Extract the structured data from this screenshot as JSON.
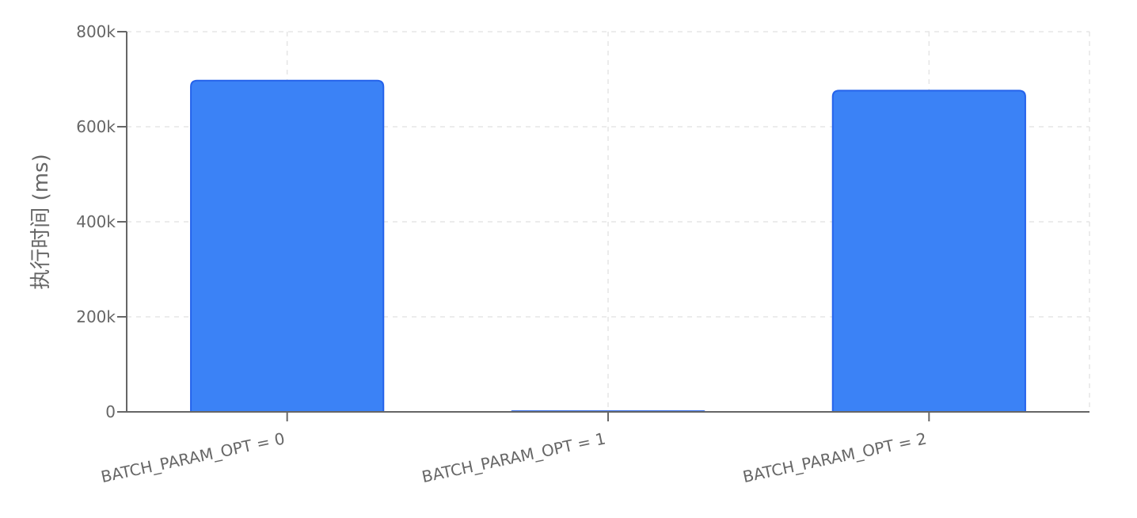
{
  "chart_data": {
    "type": "bar",
    "categories": [
      "BATCH_PARAM_OPT = 0",
      "BATCH_PARAM_OPT = 1",
      "BATCH_PARAM_OPT = 2"
    ],
    "values": [
      697000,
      1500,
      676000
    ],
    "xlabel": "",
    "ylabel": "执行时间 (ms)",
    "ylim": [
      0,
      800000
    ],
    "yticks": [
      0,
      200000,
      400000,
      600000,
      800000
    ],
    "ytick_labels": [
      "0",
      "200k",
      "400k",
      "600k",
      "800k"
    ],
    "grid": true,
    "legend": "none",
    "colors": {
      "bar_fill": "#3b82f6",
      "bar_stroke": "#2563eb",
      "axis": "#666666",
      "grid": "#e5e5e5",
      "text": "#666666"
    }
  }
}
